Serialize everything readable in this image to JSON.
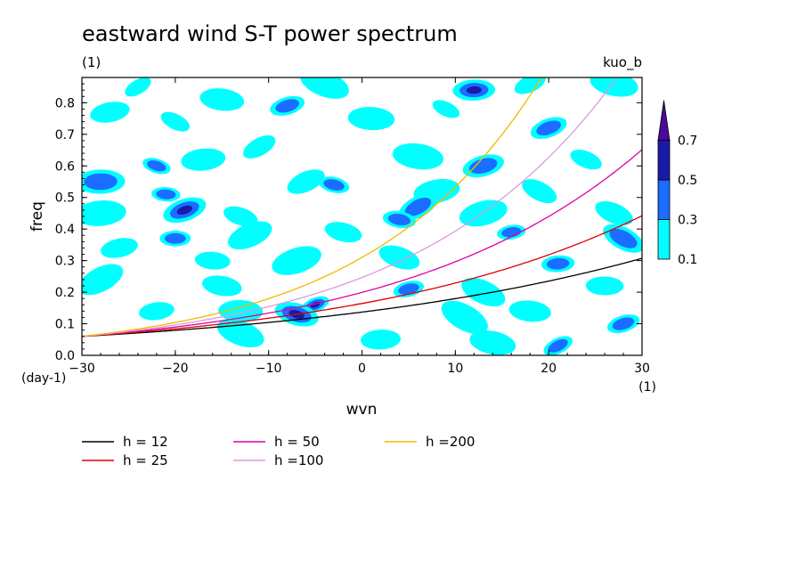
{
  "chart_data": {
    "type": "heatmap",
    "title": "eastward wind S-T power spectrum",
    "subtitle": "(1)",
    "label_top_right": "kuo_b",
    "xlabel": "wvn",
    "ylabel": "freq",
    "x_unit_label": "(1)",
    "y_unit_label": "(day-1)",
    "xlim": [
      -30,
      30
    ],
    "ylim": [
      0,
      0.88
    ],
    "x_ticks": [
      -30,
      -20,
      -10,
      0,
      10,
      20,
      30
    ],
    "x_tick_labels": [
      "−30",
      "−20",
      "−10",
      "0",
      "10",
      "20",
      "30"
    ],
    "y_ticks": [
      0,
      0.1,
      0.2,
      0.3,
      0.4,
      0.5,
      0.6,
      0.7,
      0.8
    ],
    "y_tick_labels": [
      "0.0",
      "0.1",
      "0.2",
      "0.3",
      "0.4",
      "0.5",
      "0.6",
      "0.7",
      "0.8"
    ],
    "colorbar": {
      "levels": [
        0.1,
        0.3,
        0.5,
        0.7
      ],
      "level_labels": [
        "0.1",
        "0.3",
        "0.5",
        "0.7"
      ],
      "colors": [
        "#00ffff",
        "#1a6dff",
        "#1a1aaa",
        "#4b0a9a"
      ]
    },
    "shade_blobs": [
      {
        "x": -24,
        "y": 0.85,
        "level": 1
      },
      {
        "x": -15,
        "y": 0.81,
        "level": 1
      },
      {
        "x": -8,
        "y": 0.79,
        "level": 2
      },
      {
        "x": -4,
        "y": 0.86,
        "level": 1
      },
      {
        "x": 12,
        "y": 0.84,
        "level": 3
      },
      {
        "x": 18,
        "y": 0.86,
        "level": 1
      },
      {
        "x": 27,
        "y": 0.86,
        "level": 1
      },
      {
        "x": -27,
        "y": 0.77,
        "level": 1
      },
      {
        "x": -20,
        "y": 0.74,
        "level": 1
      },
      {
        "x": 1,
        "y": 0.75,
        "level": 1
      },
      {
        "x": 20,
        "y": 0.72,
        "level": 2
      },
      {
        "x": -22,
        "y": 0.6,
        "level": 2
      },
      {
        "x": -17,
        "y": 0.62,
        "level": 1
      },
      {
        "x": -11,
        "y": 0.66,
        "level": 1
      },
      {
        "x": 6,
        "y": 0.63,
        "level": 1
      },
      {
        "x": 13,
        "y": 0.6,
        "level": 2
      },
      {
        "x": 24,
        "y": 0.62,
        "level": 1
      },
      {
        "x": -28,
        "y": 0.55,
        "level": 2
      },
      {
        "x": -6,
        "y": 0.55,
        "level": 1
      },
      {
        "x": -3,
        "y": 0.54,
        "level": 2
      },
      {
        "x": 8,
        "y": 0.52,
        "level": 1
      },
      {
        "x": 19,
        "y": 0.52,
        "level": 1
      },
      {
        "x": -21,
        "y": 0.51,
        "level": 2
      },
      {
        "x": -19,
        "y": 0.46,
        "level": 3
      },
      {
        "x": -13,
        "y": 0.44,
        "level": 1
      },
      {
        "x": -28,
        "y": 0.45,
        "level": 1
      },
      {
        "x": 6,
        "y": 0.47,
        "level": 2
      },
      {
        "x": 4,
        "y": 0.43,
        "level": 2
      },
      {
        "x": 13,
        "y": 0.45,
        "level": 1
      },
      {
        "x": 27,
        "y": 0.45,
        "level": 1
      },
      {
        "x": -20,
        "y": 0.37,
        "level": 2
      },
      {
        "x": -12,
        "y": 0.38,
        "level": 1
      },
      {
        "x": -2,
        "y": 0.39,
        "level": 1
      },
      {
        "x": 16,
        "y": 0.39,
        "level": 2
      },
      {
        "x": 28,
        "y": 0.37,
        "level": 2
      },
      {
        "x": -16,
        "y": 0.3,
        "level": 1
      },
      {
        "x": -7,
        "y": 0.3,
        "level": 1
      },
      {
        "x": 4,
        "y": 0.31,
        "level": 1
      },
      {
        "x": 21,
        "y": 0.29,
        "level": 2
      },
      {
        "x": -28,
        "y": 0.24,
        "level": 1
      },
      {
        "x": -15,
        "y": 0.22,
        "level": 1
      },
      {
        "x": 5,
        "y": 0.21,
        "level": 2
      },
      {
        "x": 13,
        "y": 0.2,
        "level": 1
      },
      {
        "x": 26,
        "y": 0.22,
        "level": 1
      },
      {
        "x": -5,
        "y": 0.16,
        "level": 3
      },
      {
        "x": -7,
        "y": 0.13,
        "level": 3
      },
      {
        "x": -22,
        "y": 0.14,
        "level": 1
      },
      {
        "x": 11,
        "y": 0.12,
        "level": 1
      },
      {
        "x": 18,
        "y": 0.14,
        "level": 1
      },
      {
        "x": 28,
        "y": 0.1,
        "level": 2
      },
      {
        "x": -13,
        "y": 0.07,
        "level": 1
      },
      {
        "x": 2,
        "y": 0.05,
        "level": 1
      },
      {
        "x": 21,
        "y": 0.03,
        "level": 2
      },
      {
        "x": 14,
        "y": 0.04,
        "level": 1
      },
      {
        "x": -26,
        "y": 0.34,
        "level": 1
      },
      {
        "x": 9,
        "y": 0.78,
        "level": 1
      },
      {
        "x": -13,
        "y": 0.14,
        "level": 1
      }
    ],
    "series": [
      {
        "name": "h = 12",
        "h": 12,
        "color": "#000000"
      },
      {
        "name": "h = 25",
        "h": 25,
        "color": "#dd0000"
      },
      {
        "name": "h = 50",
        "h": 50,
        "color": "#dd00aa"
      },
      {
        "name": "h =100",
        "h": 100,
        "color": "#dd99dd"
      },
      {
        "name": "h =200",
        "h": 200,
        "color": "#eebb00"
      }
    ],
    "grid": false,
    "legend_position": "bottom"
  }
}
